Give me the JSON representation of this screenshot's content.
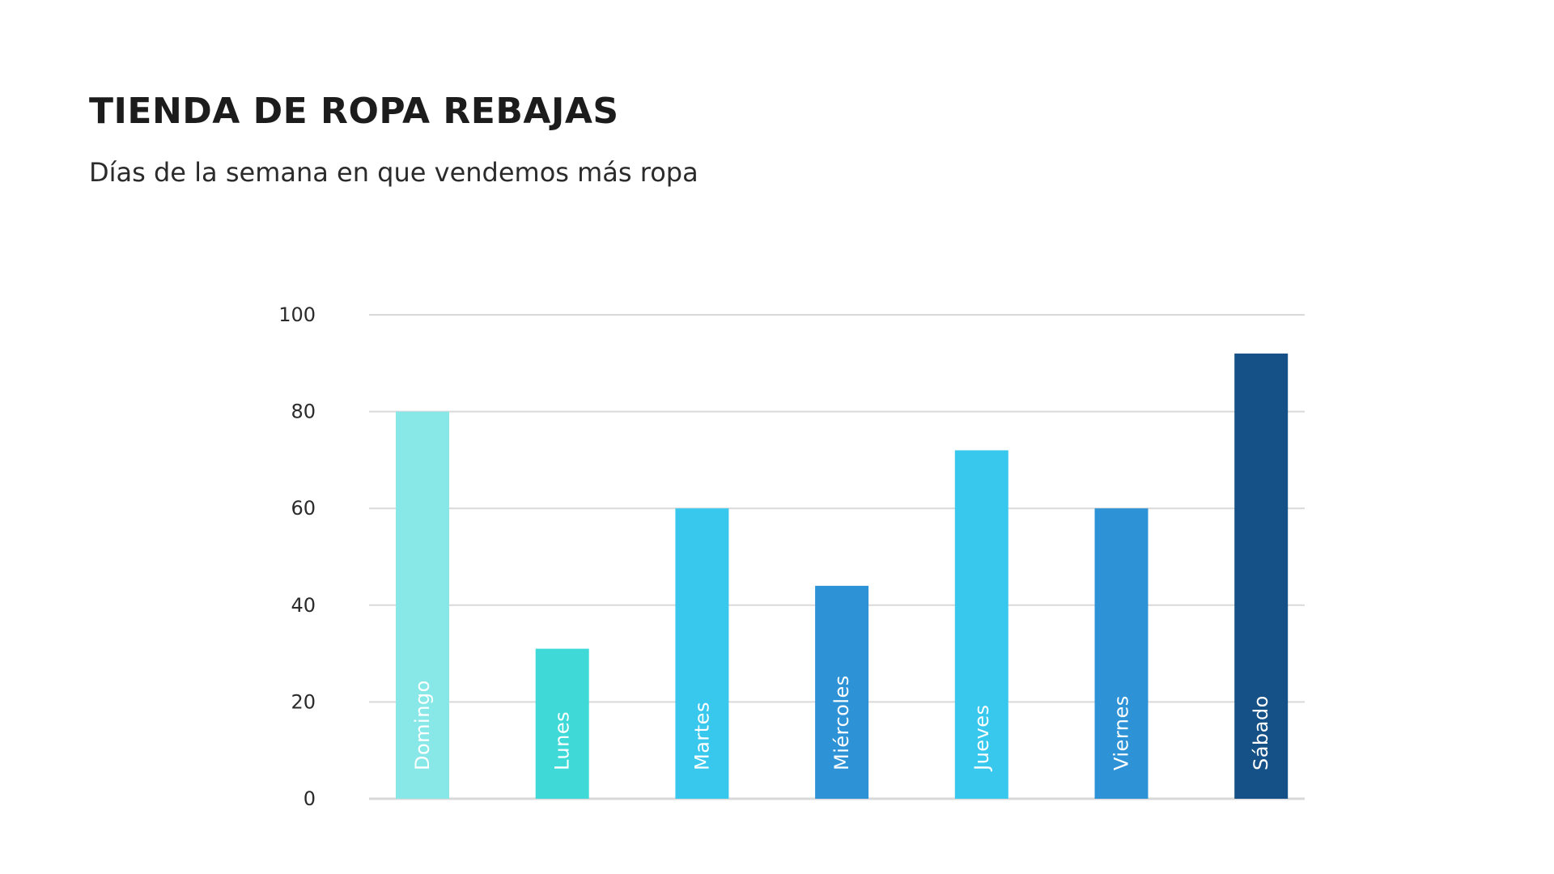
{
  "header": {
    "title": "TIENDA DE ROPA REBAJAS",
    "subtitle": "Días de la semana en que vendemos más ropa"
  },
  "chart_data": {
    "type": "bar",
    "title": "TIENDA DE ROPA REBAJAS",
    "subtitle": "Días de la semana en que vendemos más ropa",
    "xlabel": "",
    "ylabel": "",
    "categories": [
      "Domingo",
      "Lunes",
      "Martes",
      "Miércoles",
      "Jueves",
      "Viernes",
      "Sábado"
    ],
    "values": [
      80,
      31,
      60,
      44,
      72,
      60,
      92
    ],
    "colors": [
      "#88e8e8",
      "#3fdad8",
      "#38c8ed",
      "#2e93d6",
      "#38c8ed",
      "#2e93d6",
      "#155187"
    ],
    "ylim": [
      0,
      100
    ],
    "yticks": [
      0,
      20,
      40,
      60,
      80,
      100
    ],
    "grid": true,
    "gridColor": "#d9d9d9",
    "category_labels_inside_bars": true,
    "legend": "none"
  }
}
